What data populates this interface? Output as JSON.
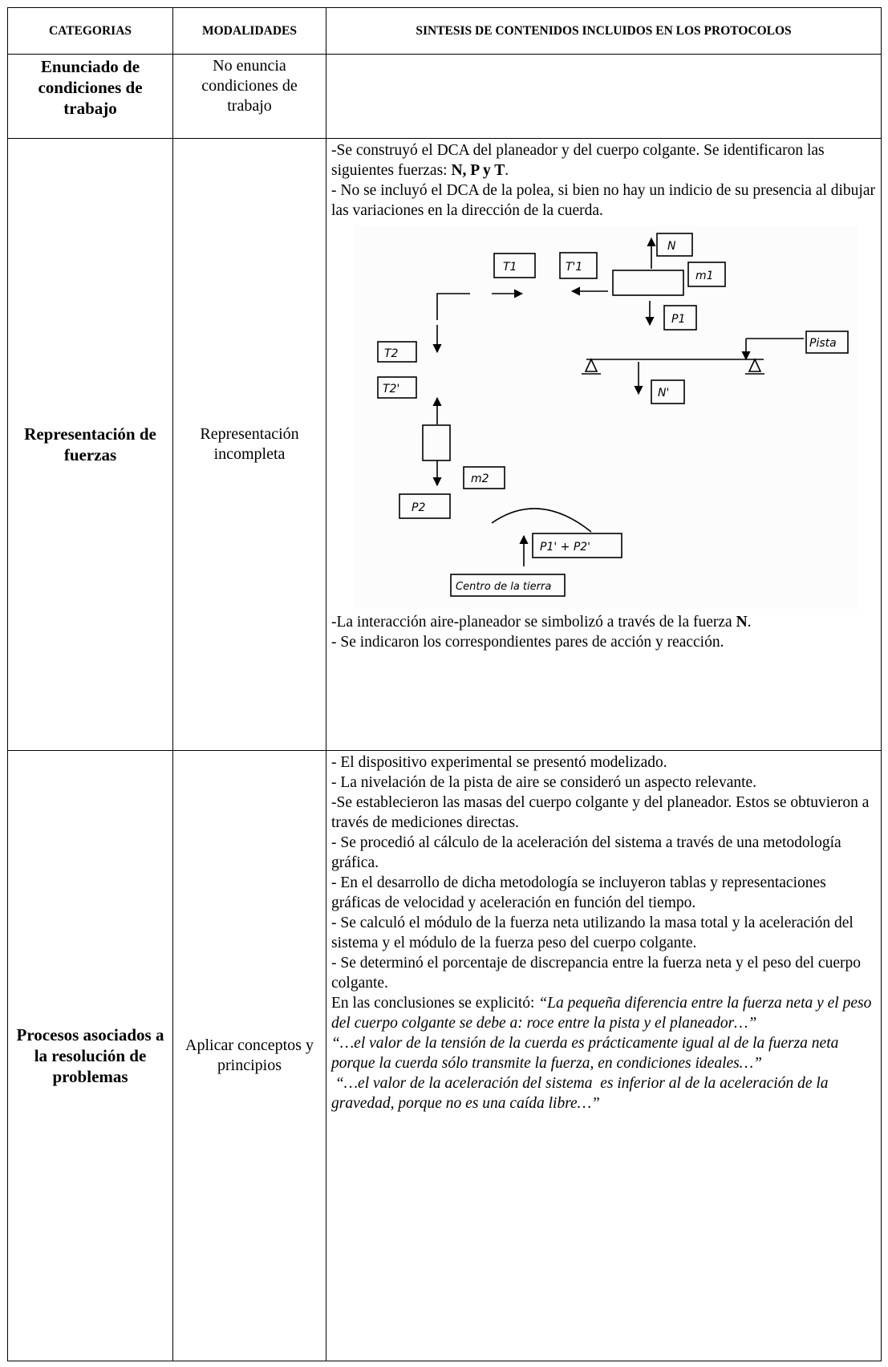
{
  "table": {
    "header": [
      "CATEGORIAS",
      "MODALIDADES",
      "SINTESIS DE CONTENIDOS INCLUIDOS EN LOS PROTOCOLOS"
    ],
    "rows": [
      {
        "category": "Enunciado de condiciones de trabajo",
        "modality": "No enuncia condiciones de trabajo",
        "content": []
      },
      {
        "category": "Representación de fuerzas",
        "modality": "Representación incompleta",
        "content": [
          [
            "-Se construyó el DCA del planeador y del cuerpo colgante. Se identificaron las siguientes fuerzas: ",
            "N, P y T",
            "."
          ],
          [
            "- No se incluyó el DCA de la polea, si bien no hay un indicio de su presencia al dibujar las variaciones en la dirección de la cuerda."
          ],
          [
            "-La interacción aire-planeador se simbolizó a través de la fuerza ",
            "N",
            "."
          ],
          [
            "- Se indicaron los correspondientes pares de acción y reacción."
          ]
        ],
        "diagram": {
          "labels": [
            "T1",
            "T'1",
            "N",
            "m1",
            "P1",
            "Pista",
            "T2",
            "T2'",
            "N'",
            "m2",
            "P2",
            "P1' + P2'",
            "Centro de la tierra"
          ]
        }
      },
      {
        "category": "Procesos asociados a la resolución de problemas",
        "modality": "Aplicar conceptos y principios",
        "content": [
          [
            "- El dispositivo experimental se presentó modelizado."
          ],
          [
            "- La nivelación de la pista de aire se consideró  un aspecto relevante."
          ],
          [
            "-Se establecieron las masas del cuerpo colgante y del planeador. Estos se obtuvieron a través de mediciones directas."
          ],
          [
            "- Se procedió al cálculo de la aceleración del sistema a través de una metodología gráfica."
          ],
          [
            "- En el desarrollo de dicha metodología  se incluyeron tablas y representaciones gráficas de velocidad y aceleración en función del tiempo."
          ],
          [
            "- Se calculó el módulo de la fuerza neta utilizando la masa total y la aceleración del sistema y el módulo de la fuerza peso del cuerpo colgante."
          ],
          [
            "- Se determinó el porcentaje de discrepancia entre la fuerza neta y el peso del cuerpo colgante."
          ],
          [
            " En las conclusiones se explicitó: ",
            "“La pequeña diferencia entre la fuerza neta y el peso del cuerpo colgante se debe a: roce entre la pista y el planeador…”"
          ],
          [
            "“…el valor de la tensión de la cuerda es prácticamente igual al de la fuerza neta porque la cuerda sólo transmite la fuerza, en condiciones ideales…”"
          ],
          [
            " “…el valor de la aceleración del sistema  es inferior al de la aceleración de la gravedad, porque no es una caída libre…”"
          ]
        ]
      }
    ]
  }
}
